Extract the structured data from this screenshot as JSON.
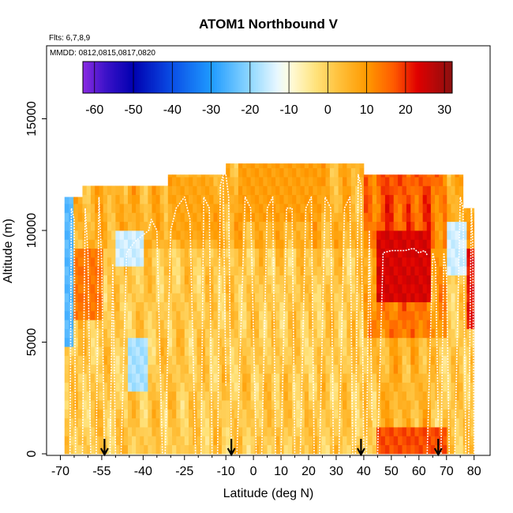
{
  "chart_data": {
    "type": "heatmap",
    "title": "ATOM1 Northbound V",
    "subtitle_flights": "Flts: 6,7,8,9",
    "subtitle_dates": "MMDD: 0812,0815,0817,0820",
    "xlabel": "Latitude (deg N)",
    "ylabel": "Altitude (m)",
    "xlim": [
      -70,
      85
    ],
    "ylim": [
      0,
      18000
    ],
    "x_ticks": [
      -70,
      -55,
      -40,
      -25,
      -10,
      0,
      10,
      20,
      30,
      40,
      50,
      60,
      70,
      80
    ],
    "x_tick_labels": [
      "-70",
      "-55",
      "-40",
      "-25",
      "-10",
      "0",
      "10",
      "20",
      "30",
      "40",
      "50",
      "60",
      "70",
      "80"
    ],
    "x_minor_ticks": [
      -65,
      -60,
      -50,
      -45,
      -35,
      -30,
      -20,
      -15,
      -5,
      5,
      15,
      25,
      35,
      45,
      55,
      65,
      75
    ],
    "y_ticks": [
      0,
      5000,
      10000,
      15000
    ],
    "y_tick_labels": [
      "0",
      "5000",
      "10000",
      "15000"
    ],
    "colorbar": {
      "range": [
        -63,
        32
      ],
      "ticks": [
        -60,
        -50,
        -40,
        -30,
        -20,
        -10,
        0,
        10,
        20,
        30
      ],
      "tick_labels": [
        "-60",
        "-50",
        "-40",
        "-30",
        "-20",
        "-10",
        "0",
        "10",
        "20",
        "30"
      ],
      "stops": [
        {
          "v": -63,
          "c": "#8a2be2"
        },
        {
          "v": -57,
          "c": "#3a12c8"
        },
        {
          "v": -50,
          "c": "#0000b0"
        },
        {
          "v": -40,
          "c": "#0a4fe6"
        },
        {
          "v": -30,
          "c": "#1e9aff"
        },
        {
          "v": -20,
          "c": "#8fd8ff"
        },
        {
          "v": -13,
          "c": "#e8f7ff"
        },
        {
          "v": -10,
          "c": "#fffde0"
        },
        {
          "v": -3,
          "c": "#ffe27a"
        },
        {
          "v": 3,
          "c": "#ffc03a"
        },
        {
          "v": 10,
          "c": "#ff9a00"
        },
        {
          "v": 17,
          "c": "#ff5a00"
        },
        {
          "v": 23,
          "c": "#e00000"
        },
        {
          "v": 32,
          "c": "#8b1010"
        }
      ]
    },
    "lat_columns": [
      {
        "x0": -68.5,
        "x1": -62,
        "top": 11500
      },
      {
        "x0": -62,
        "x1": -56,
        "top": 12000
      },
      {
        "x0": -56,
        "x1": -47,
        "top": 12000
      },
      {
        "x0": -47,
        "x1": -31,
        "top": 12000
      },
      {
        "x0": -31,
        "x1": -10,
        "top": 12500
      },
      {
        "x0": -10,
        "x1": 8,
        "top": 13000
      },
      {
        "x0": 8,
        "x1": 20,
        "top": 13000
      },
      {
        "x0": 20,
        "x1": 40,
        "top": 13000
      },
      {
        "x0": 40,
        "x1": 57,
        "top": 12500
      },
      {
        "x0": 57,
        "x1": 76,
        "top": 12500
      },
      {
        "x0": 76,
        "x1": 80,
        "top": 11000
      }
    ],
    "wind_regions": [
      {
        "name": "southern-blue-edge",
        "x": [
          -68.5,
          -65
        ],
        "z": [
          5000,
          11500
        ],
        "v": -25
      },
      {
        "name": "southern-jet",
        "x": [
          -65,
          -55
        ],
        "z": [
          6000,
          9000
        ],
        "v": 14
      },
      {
        "name": "midlat-light",
        "x": [
          -50,
          -40
        ],
        "z": [
          8500,
          10000
        ],
        "v": -15
      },
      {
        "name": "midlat-light-low",
        "x": [
          -45,
          -38
        ],
        "z": [
          3000,
          5000
        ],
        "v": -18
      },
      {
        "name": "subtropic-orange",
        "x": [
          -30,
          -15
        ],
        "z": [
          9500,
          12500
        ],
        "v": 8
      },
      {
        "name": "tropical-orange",
        "x": [
          -5,
          25
        ],
        "z": [
          10500,
          13000
        ],
        "v": 9
      },
      {
        "name": "northern-jet",
        "x": [
          45,
          65
        ],
        "z": [
          7000,
          10000
        ],
        "v": 24
      },
      {
        "name": "northern-low-red",
        "x": [
          44,
          70
        ],
        "z": [
          0,
          1000
        ],
        "v": 18
      },
      {
        "name": "arctic-light",
        "x": [
          70,
          77
        ],
        "z": [
          8000,
          10500
        ],
        "v": -15
      },
      {
        "name": "arctic-red",
        "x": [
          77,
          80
        ],
        "z": [
          5500,
          9000
        ],
        "v": 22
      }
    ],
    "flight_tracks": [
      [
        [
          -66.5,
          0
        ],
        [
          -66,
          11000
        ],
        [
          -65,
          10500
        ],
        [
          -64.5,
          0
        ]
      ],
      [
        [
          -62,
          0
        ],
        [
          -61,
          11000
        ],
        [
          -60,
          9000
        ],
        [
          -59,
          0
        ]
      ],
      [
        [
          -57,
          0
        ],
        [
          -56,
          11500
        ],
        [
          -55,
          8500
        ],
        [
          -54,
          0
        ]
      ],
      [
        [
          -52,
          0
        ],
        [
          -51,
          8500
        ],
        [
          -50,
          0
        ]
      ],
      [
        [
          -48,
          0
        ],
        [
          -46,
          9000
        ],
        [
          -43,
          9500
        ],
        [
          -38,
          10000
        ],
        [
          -37,
          10500
        ],
        [
          -35,
          10000
        ],
        [
          -33,
          0
        ]
      ],
      [
        [
          -32,
          0
        ],
        [
          -30,
          10000
        ],
        [
          -28,
          11000
        ],
        [
          -25,
          11500
        ],
        [
          -23,
          10500
        ],
        [
          -21,
          0
        ]
      ],
      [
        [
          -19,
          0
        ],
        [
          -18,
          11500
        ],
        [
          -16,
          11000
        ],
        [
          -15,
          0
        ]
      ],
      [
        [
          -13,
          0
        ],
        [
          -12,
          12000
        ],
        [
          -11,
          12500
        ],
        [
          -10,
          3000
        ]
      ],
      [
        [
          -10,
          12500
        ],
        [
          -9,
          11500
        ],
        [
          -8,
          0
        ]
      ],
      [
        [
          -6,
          0
        ],
        [
          -3,
          11500
        ],
        [
          -1,
          11000
        ],
        [
          1,
          0
        ]
      ],
      [
        [
          3,
          0
        ],
        [
          5,
          11000
        ],
        [
          7,
          11500
        ],
        [
          8,
          0
        ]
      ],
      [
        [
          10,
          0
        ],
        [
          12,
          11000
        ],
        [
          14,
          11000
        ],
        [
          15,
          0
        ]
      ],
      [
        [
          17,
          0
        ],
        [
          19,
          11000
        ],
        [
          21,
          11500
        ],
        [
          22,
          0
        ]
      ],
      [
        [
          24,
          0
        ],
        [
          26,
          11500
        ],
        [
          28,
          11000
        ],
        [
          29,
          0
        ]
      ],
      [
        [
          31,
          0
        ],
        [
          33,
          11000
        ],
        [
          35,
          11500
        ],
        [
          36,
          0
        ]
      ],
      [
        [
          37,
          0
        ],
        [
          38,
          12500
        ],
        [
          39,
          12000
        ],
        [
          40,
          0
        ]
      ],
      [
        [
          41,
          0
        ],
        [
          42,
          10000
        ],
        [
          43,
          1500
        ]
      ],
      [
        [
          45,
          0
        ],
        [
          47,
          9000
        ],
        [
          50,
          9100
        ],
        [
          55,
          9100
        ],
        [
          58,
          9200
        ],
        [
          60,
          9000
        ],
        [
          62,
          9100
        ],
        [
          63,
          8900
        ]
      ],
      [
        [
          63,
          0
        ],
        [
          65,
          9000
        ],
        [
          66,
          8500
        ],
        [
          67,
          1500
        ]
      ],
      [
        [
          68,
          0
        ],
        [
          69,
          9000
        ],
        [
          70,
          8000
        ],
        [
          71,
          0
        ]
      ],
      [
        [
          73,
          0
        ],
        [
          75,
          11500
        ],
        [
          76,
          11000
        ],
        [
          77,
          0
        ]
      ],
      [
        [
          78,
          0
        ],
        [
          79,
          11000
        ],
        [
          79.5,
          9500
        ],
        [
          80,
          0
        ]
      ]
    ],
    "arrow_latitudes": [
      -54,
      -8,
      39,
      67
    ]
  }
}
